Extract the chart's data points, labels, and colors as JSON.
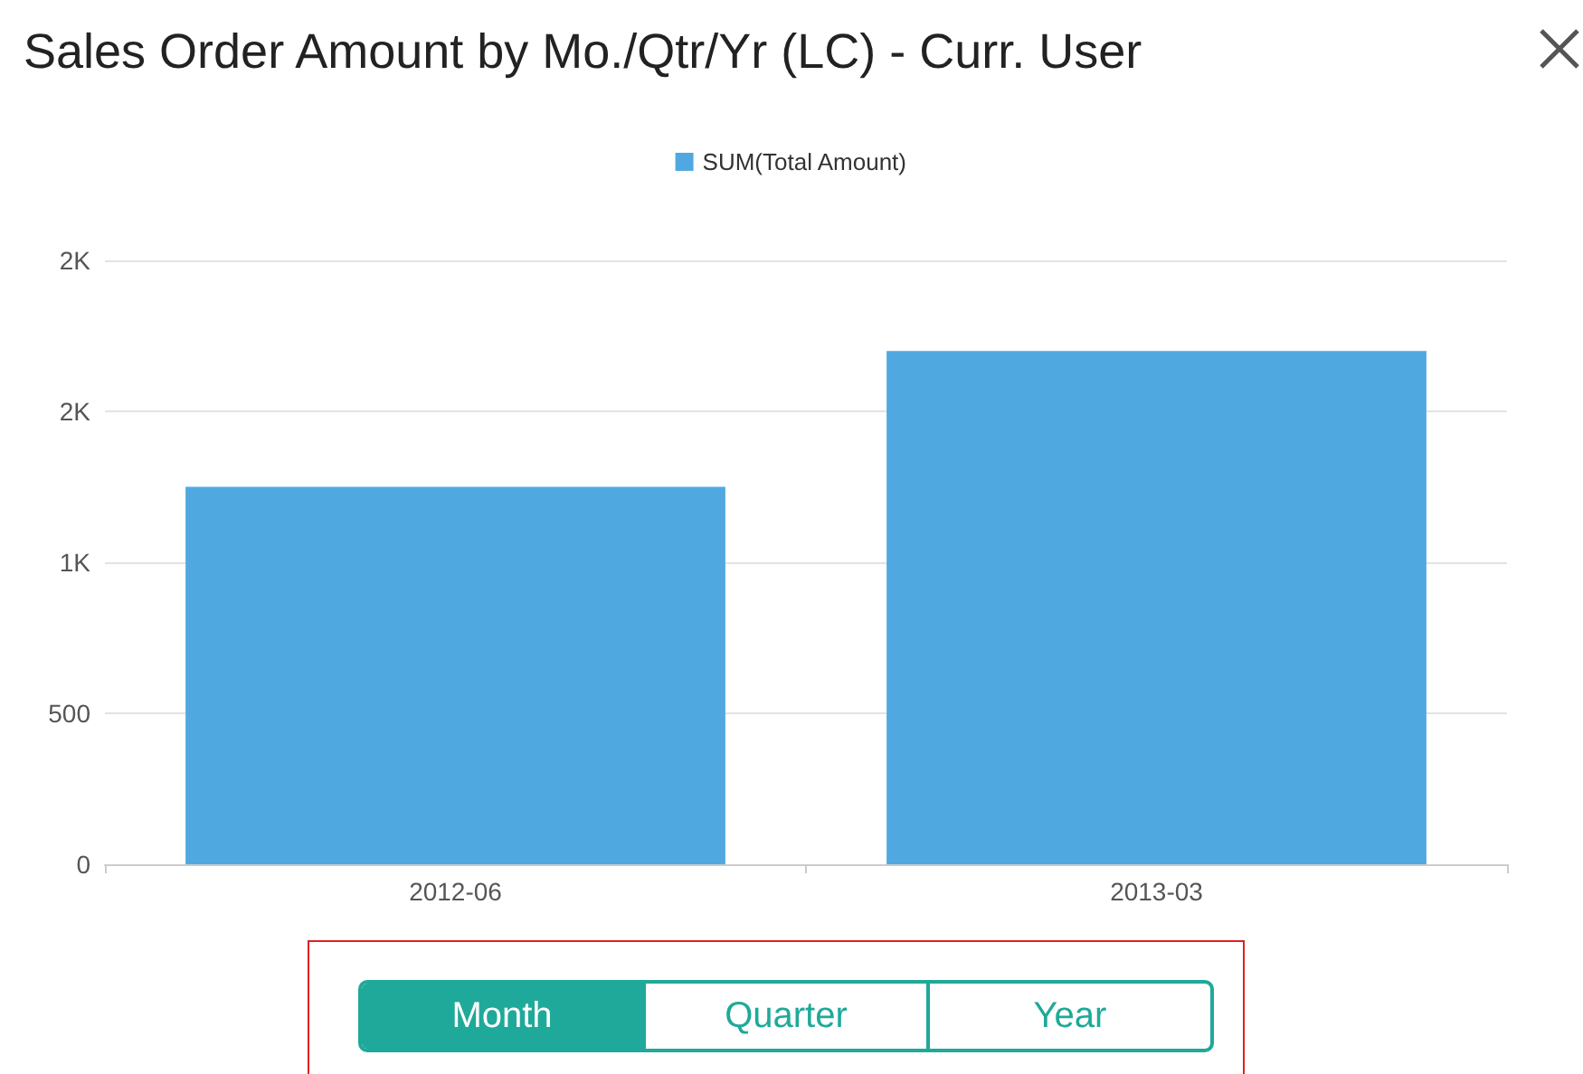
{
  "chart_data": {
    "type": "bar",
    "title": "Sales Order Amount by Mo./Qtr/Yr (LC) - Curr. User",
    "categories": [
      "2012-06",
      "2013-03"
    ],
    "series": [
      {
        "name": "SUM(Total Amount)",
        "color": "#4fa9e0",
        "values": [
          1250,
          1700
        ]
      }
    ],
    "ylim": [
      0,
      2000
    ],
    "yticks": [
      0,
      500,
      {
        "value": 1000,
        "label": "1K"
      },
      {
        "value": 1500,
        "label": "2K"
      },
      {
        "value": 2000,
        "label": "2K"
      }
    ],
    "grid": "y",
    "legend": "top",
    "annotations": [
      "Month",
      "Quarter",
      "Year"
    ]
  }
}
